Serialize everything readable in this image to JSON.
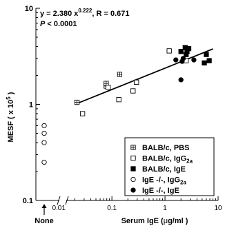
{
  "chart_data": {
    "type": "scatter",
    "x_scale": "log",
    "y_scale": "log",
    "xlim": [
      0.0037,
      10
    ],
    "ylim": [
      0.1,
      10
    ],
    "xlabel_main": "Serum IgE (",
    "xlabel_mu": "μ",
    "xlabel_tail": "g/ml )",
    "ylabel_main": "MESF ( x 10",
    "ylabel_exp": "5",
    "ylabel_tail": " )",
    "y_tick_labels": [
      {
        "value": 0.1,
        "label": "0.1"
      },
      {
        "value": 1,
        "label": "1"
      },
      {
        "value": 10,
        "label": "10"
      }
    ],
    "x_tick_labels": [
      {
        "value": 0.01,
        "label": "0.01"
      },
      {
        "value": 0.1,
        "label": "0.1"
      },
      {
        "value": 1,
        "label": "1"
      },
      {
        "value": 10,
        "label": "10"
      }
    ],
    "none_label": "None",
    "equation": {
      "prefix": "y = 2.380 x",
      "exponent": "0.222",
      "suffix": ", R = 0.671",
      "p_italic": "P",
      "p_rest": " < 0.0001"
    },
    "fit_line": {
      "slope": 0.222,
      "intercept": 2.38,
      "x_start": 0.02,
      "x_end": 8.0
    },
    "legend_position": "bottom-right",
    "series": [
      {
        "name_main": "BALB/c, PBS",
        "name_sub": "",
        "marker": "boxplus",
        "points": [
          [
            0.022,
            1.05
          ],
          [
            0.078,
            1.55
          ],
          [
            0.078,
            1.65
          ],
          [
            0.14,
            2.05
          ]
        ]
      },
      {
        "name_main": "BALB/c, IgG",
        "name_sub": "2a",
        "marker": "square-open",
        "points": [
          [
            0.028,
            0.8
          ],
          [
            0.085,
            1.5
          ],
          [
            0.135,
            1.12
          ],
          [
            0.25,
            1.38
          ],
          [
            0.29,
            1.7
          ],
          [
            1.2,
            3.6
          ],
          [
            2.5,
            2.85
          ]
        ]
      },
      {
        "name_main": "BALB/c, IgE",
        "name_sub": "",
        "marker": "square-filled",
        "points": [
          [
            2.0,
            3.55
          ],
          [
            2.4,
            3.9
          ],
          [
            2.5,
            3.3
          ],
          [
            2.6,
            3.55
          ],
          [
            2.8,
            3.8
          ],
          [
            5.5,
            2.7
          ],
          [
            6.0,
            3.3
          ],
          [
            6.8,
            2.85
          ]
        ]
      },
      {
        "name_main": "IgE -/-,   IgG",
        "name_sub": "2a",
        "marker": "circle-open",
        "points": [
          [
            0.004,
            0.6
          ],
          [
            0.004,
            0.5
          ],
          [
            0.004,
            0.4
          ],
          [
            0.004,
            0.25
          ]
        ]
      },
      {
        "name_main": "IgE -/-,   IgE",
        "name_sub": "",
        "marker": "circle-filled",
        "points": [
          [
            1.6,
            2.9
          ],
          [
            2.0,
            1.8
          ],
          [
            2.1,
            2.8
          ],
          [
            2.2,
            3.0
          ],
          [
            3.5,
            2.9
          ]
        ]
      }
    ]
  }
}
